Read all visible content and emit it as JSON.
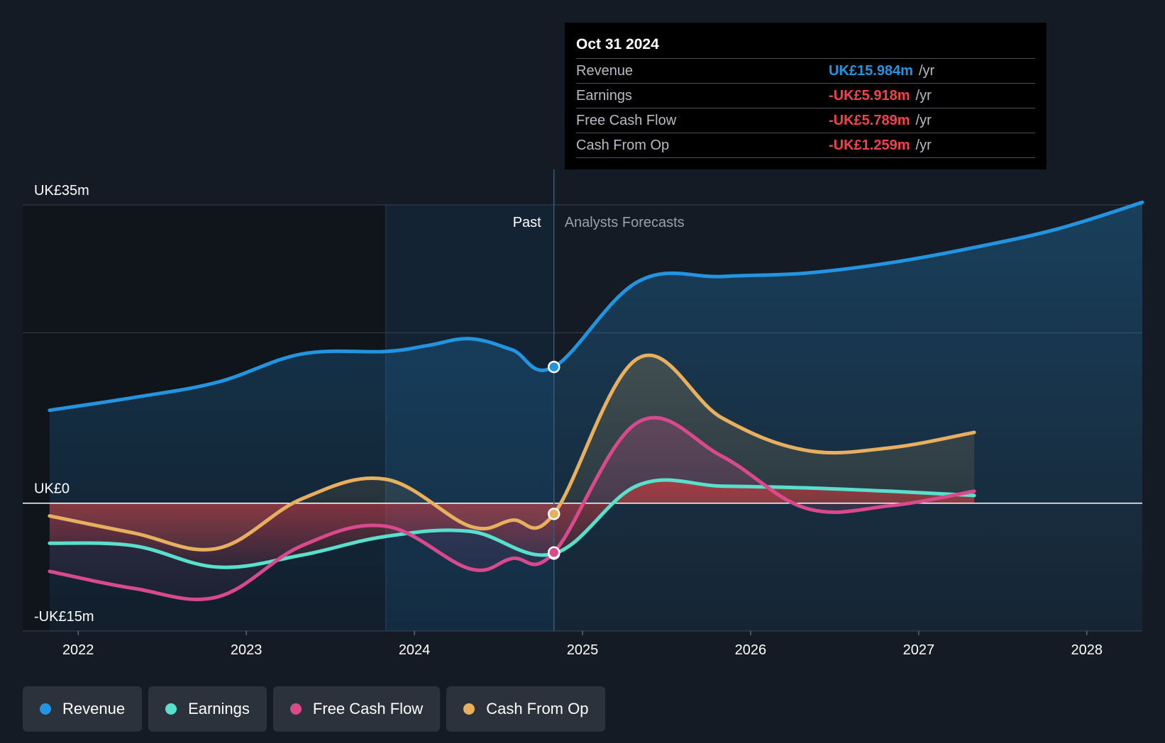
{
  "colors": {
    "background": "#151b24",
    "revenue": "#2394df",
    "earnings": "#59e0cd",
    "free_cash_flow": "#d94a8c",
    "cash_from_op": "#e8b05e",
    "negative": "#f0434a"
  },
  "chart_data": {
    "type": "line",
    "title": "",
    "xlabel": "",
    "ylabel": "",
    "ylim": [
      -15,
      35
    ],
    "xlim": [
      2021.67,
      2028.33
    ],
    "y_tick_labels": [
      {
        "value": 35,
        "label": "UK£35m"
      },
      {
        "value": 0,
        "label": "UK£0"
      },
      {
        "value": -15,
        "label": "-UK£15m"
      }
    ],
    "y_gridlines": [
      35,
      20,
      0,
      -15
    ],
    "x_ticks": [
      {
        "value": 2022,
        "label": "2022"
      },
      {
        "value": 2023,
        "label": "2023"
      },
      {
        "value": 2024,
        "label": "2024"
      },
      {
        "value": 2025,
        "label": "2025"
      },
      {
        "value": 2026,
        "label": "2026"
      },
      {
        "value": 2027,
        "label": "2027"
      },
      {
        "value": 2028,
        "label": "2028"
      }
    ],
    "divider_x": 2024.83,
    "highlight_start_x": 2023.83,
    "past_label": "Past",
    "forecast_label": "Analysts Forecasts",
    "series": [
      {
        "name": "Revenue",
        "key": "revenue",
        "color": "#2394df",
        "x": [
          2021.83,
          2022.33,
          2022.83,
          2023.33,
          2023.83,
          2024.08,
          2024.33,
          2024.58,
          2024.83,
          2025.33,
          2025.83,
          2026.33,
          2026.83,
          2027.33,
          2027.83,
          2028.33
        ],
        "values": [
          10.9,
          12.4,
          14.2,
          17.5,
          17.8,
          18.5,
          19.3,
          18.0,
          15.984,
          26.0,
          26.6,
          27.0,
          28.2,
          30.0,
          32.2,
          35.3
        ]
      },
      {
        "name": "Earnings",
        "key": "earnings",
        "color": "#59e0cd",
        "x": [
          2021.83,
          2022.33,
          2022.83,
          2023.33,
          2023.83,
          2024.33,
          2024.83,
          2025.33,
          2025.83,
          2026.33,
          2026.83,
          2027.33
        ],
        "values": [
          -4.7,
          -5.0,
          -7.5,
          -6.1,
          -3.9,
          -3.3,
          -5.918,
          2.1,
          2.0,
          1.8,
          1.4,
          0.9
        ]
      },
      {
        "name": "Free Cash Flow",
        "key": "free_cash_flow",
        "color": "#d94a8c",
        "x": [
          2021.83,
          2022.33,
          2022.83,
          2023.33,
          2023.83,
          2024.33,
          2024.58,
          2024.83,
          2025.33,
          2025.83,
          2026.33,
          2026.83,
          2027.33
        ],
        "values": [
          -8.0,
          -10.0,
          -11.0,
          -5.0,
          -2.7,
          -7.7,
          -6.5,
          -5.789,
          9.5,
          5.5,
          -0.6,
          -0.3,
          1.4
        ]
      },
      {
        "name": "Cash From Op",
        "key": "cash_from_op",
        "color": "#e8b05e",
        "x": [
          2021.83,
          2022.33,
          2022.83,
          2023.33,
          2023.83,
          2024.33,
          2024.58,
          2024.83,
          2025.33,
          2025.83,
          2026.33,
          2026.83,
          2027.33
        ],
        "values": [
          -1.5,
          -3.5,
          -5.3,
          0.5,
          2.8,
          -2.7,
          -2.0,
          -1.259,
          17.0,
          10.0,
          6.2,
          6.5,
          8.3
        ]
      }
    ],
    "highlight_x": 2024.83
  },
  "tooltip": {
    "date": "Oct 31 2024",
    "rows": [
      {
        "label": "Revenue",
        "value": "UK£15.984m",
        "unit": "/yr"
      },
      {
        "label": "Earnings",
        "value": "-UK£5.918m",
        "unit": "/yr"
      },
      {
        "label": "Free Cash Flow",
        "value": "-UK£5.789m",
        "unit": "/yr"
      },
      {
        "label": "Cash From Op",
        "value": "-UK£1.259m",
        "unit": "/yr"
      }
    ]
  },
  "legend": [
    {
      "label": "Revenue",
      "color": "#2394df"
    },
    {
      "label": "Earnings",
      "color": "#59e0cd"
    },
    {
      "label": "Free Cash Flow",
      "color": "#d94a8c"
    },
    {
      "label": "Cash From Op",
      "color": "#e8b05e"
    }
  ]
}
